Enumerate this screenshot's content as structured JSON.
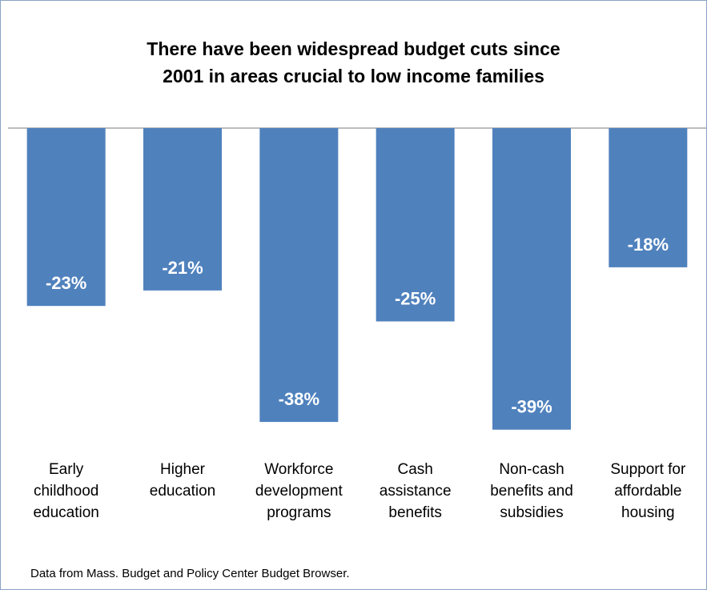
{
  "chart_data": {
    "type": "bar",
    "title": "There have been widespread budget cuts since 2001 in areas crucial to low income families",
    "title_lines": [
      "There have been widespread budget cuts since",
      "2001 in areas crucial to low income families"
    ],
    "categories": [
      [
        "Early",
        "childhood",
        "education"
      ],
      [
        "Higher",
        "education"
      ],
      [
        "Workforce",
        "development",
        "programs"
      ],
      [
        "Cash",
        "assistance",
        "benefits"
      ],
      [
        "Non-cash",
        "benefits and",
        "subsidies"
      ],
      [
        "Support for",
        "affordable",
        "housing"
      ]
    ],
    "values": [
      -23,
      -21,
      -38,
      -25,
      -39,
      -18
    ],
    "data_labels": [
      "-23%",
      "-21%",
      "-38%",
      "-25%",
      "-39%",
      "-18%"
    ],
    "ylim": [
      -44,
      0
    ],
    "grid": false,
    "legend": "none",
    "bar_color": "#4f81bd",
    "label_color": "#ffffff"
  },
  "source_note": "Data from Mass. Budget and Policy Center Budget Browser."
}
